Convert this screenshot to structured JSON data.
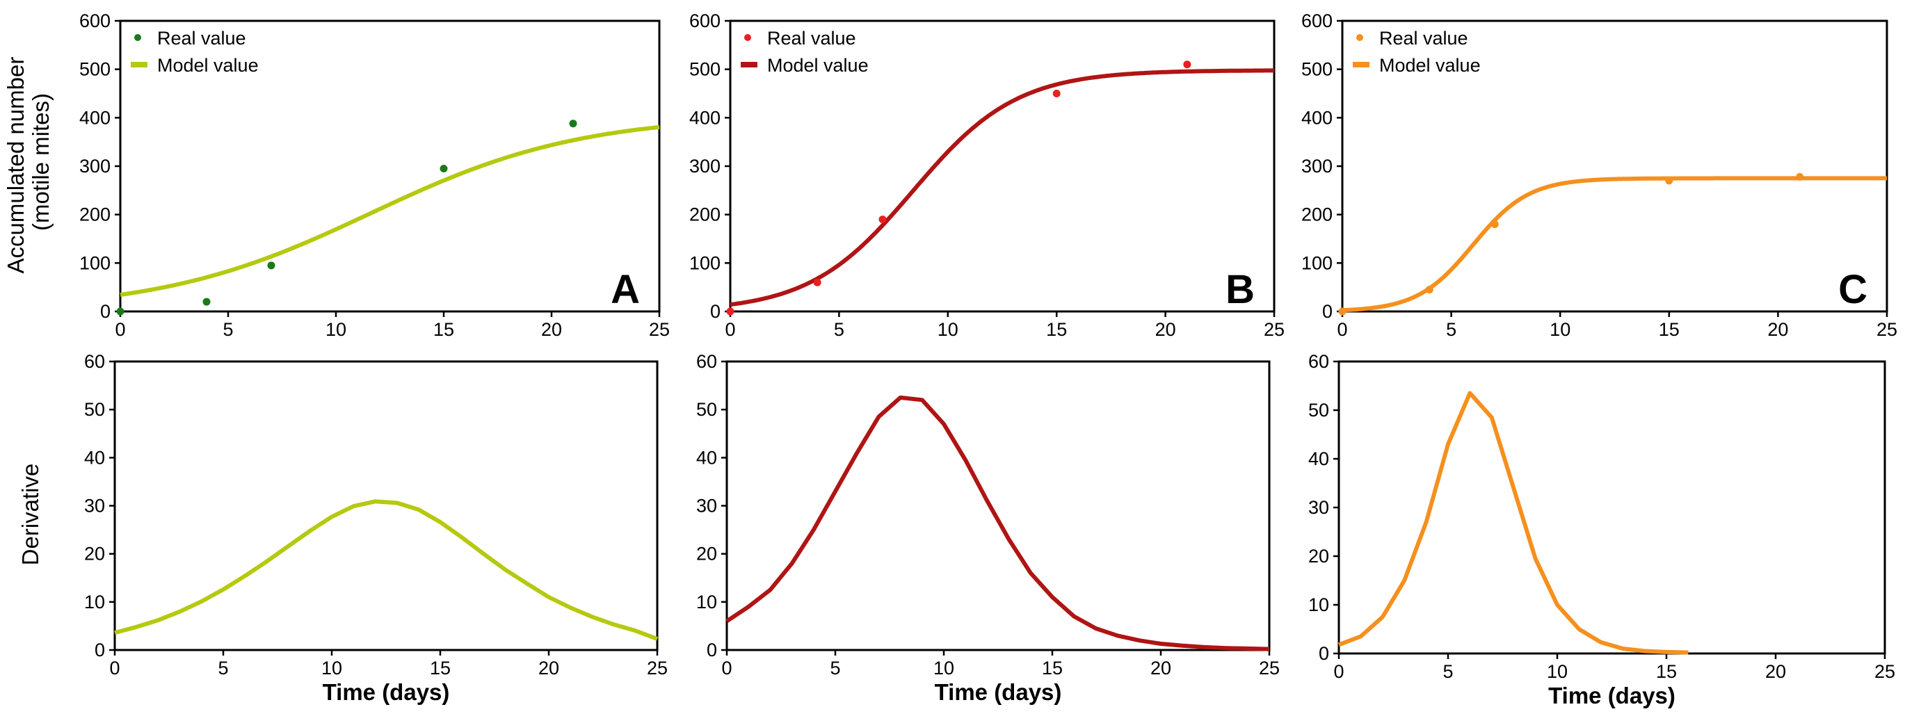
{
  "figure": {
    "y_label_top_line1": "Accumulated number",
    "y_label_top_line2": "(motile mites)",
    "y_label_bottom": "Derivative"
  },
  "chart_data": [
    {
      "id": "A-top",
      "type": "scatter+line",
      "panel_letter": "A",
      "color": "#b5c90f",
      "point_color": "#1a7a1a",
      "xlim": [
        0,
        25
      ],
      "ylim": [
        0,
        600
      ],
      "xticks": [
        0,
        5,
        10,
        15,
        20,
        25
      ],
      "yticks": [
        0,
        100,
        200,
        300,
        400,
        500,
        600
      ],
      "xlabel": "",
      "ylabel": "Accumulated number (motile mites)",
      "legend": {
        "real": "Real value",
        "model": "Model value",
        "position": "top-left"
      },
      "real_points": {
        "x": [
          0,
          4,
          7,
          15,
          21
        ],
        "y": [
          0,
          20,
          95,
          295,
          388
        ]
      },
      "model": {
        "type": "logistic",
        "K": 405,
        "r": 0.205,
        "t0": 11.6
      }
    },
    {
      "id": "B-top",
      "type": "scatter+line",
      "panel_letter": "B",
      "color": "#b01414",
      "point_color": "#e82020",
      "xlim": [
        0,
        25
      ],
      "ylim": [
        0,
        600
      ],
      "xticks": [
        0,
        5,
        10,
        15,
        20,
        25
      ],
      "yticks": [
        0,
        100,
        200,
        300,
        400,
        500,
        600
      ],
      "xlabel": "",
      "ylabel": "",
      "legend": {
        "real": "Real value",
        "model": "Model value",
        "position": "top-left"
      },
      "real_points": {
        "x": [
          0,
          4,
          7,
          15,
          21
        ],
        "y": [
          0,
          60,
          190,
          450,
          510
        ]
      },
      "model": {
        "type": "logistic",
        "K": 498,
        "r": 0.42,
        "t0": 8.4
      }
    },
    {
      "id": "C-top",
      "type": "scatter+line",
      "panel_letter": "C",
      "color": "#f5901e",
      "point_color": "#f5901e",
      "xlim": [
        0,
        25
      ],
      "ylim": [
        0,
        600
      ],
      "xticks": [
        0,
        5,
        10,
        15,
        20,
        25
      ],
      "yticks": [
        0,
        100,
        200,
        300,
        400,
        500,
        600
      ],
      "xlabel": "",
      "ylabel": "",
      "legend": {
        "real": "Real value",
        "model": "Model value",
        "position": "top-left"
      },
      "real_points": {
        "x": [
          0,
          4,
          7,
          15,
          21
        ],
        "y": [
          0,
          45,
          180,
          270,
          278
        ]
      },
      "model": {
        "type": "logistic",
        "K": 275,
        "r": 0.78,
        "t0": 6.0
      }
    },
    {
      "id": "A-bottom",
      "type": "line",
      "color": "#b5c90f",
      "xlim": [
        0,
        25
      ],
      "ylim": [
        0,
        60
      ],
      "xticks": [
        0,
        5,
        10,
        15,
        20,
        25
      ],
      "yticks": [
        0,
        10,
        20,
        30,
        40,
        50,
        60
      ],
      "xlabel": "Time (days)",
      "ylabel": "Derivative",
      "series": [
        {
          "name": "Derivative",
          "x": [
            0,
            1,
            2,
            3,
            4,
            5,
            6,
            7,
            8,
            9,
            10,
            11,
            12,
            13,
            14,
            15,
            16,
            17,
            18,
            19,
            20,
            21,
            22,
            23,
            24,
            25
          ],
          "values": [
            3.6,
            4.8,
            6.2,
            8.0,
            10.1,
            12.6,
            15.4,
            18.4,
            21.6,
            24.8,
            27.7,
            29.9,
            30.9,
            30.6,
            29.2,
            26.6,
            23.4,
            20.0,
            16.7,
            13.8,
            11.0,
            8.8,
            6.9,
            5.3,
            4.0,
            2.3
          ]
        }
      ]
    },
    {
      "id": "B-bottom",
      "type": "line",
      "color": "#b01414",
      "xlim": [
        0,
        25
      ],
      "ylim": [
        0,
        60
      ],
      "xticks": [
        0,
        5,
        10,
        15,
        20,
        25
      ],
      "yticks": [
        0,
        10,
        20,
        30,
        40,
        50,
        60
      ],
      "xlabel": "Time (days)",
      "ylabel": "",
      "series": [
        {
          "name": "Derivative",
          "x": [
            0,
            1,
            2,
            3,
            4,
            5,
            6,
            7,
            8,
            9,
            10,
            11,
            12,
            13,
            14,
            15,
            16,
            17,
            18,
            19,
            20,
            21,
            22,
            23,
            24,
            25
          ],
          "values": [
            6,
            9,
            12.5,
            18,
            25,
            33,
            41,
            48.5,
            52.5,
            52,
            47,
            39.5,
            31,
            23,
            16,
            11,
            7,
            4.5,
            3,
            2,
            1.3,
            0.9,
            0.6,
            0.4,
            0.3,
            0.2
          ]
        }
      ]
    },
    {
      "id": "C-bottom",
      "type": "line",
      "color": "#f5901e",
      "xlim": [
        0,
        25
      ],
      "ylim": [
        0,
        60
      ],
      "xticks": [
        0,
        5,
        10,
        15,
        20,
        25
      ],
      "yticks": [
        0,
        10,
        20,
        30,
        40,
        50,
        60
      ],
      "xlabel": "Time (days)",
      "ylabel": "",
      "series": [
        {
          "name": "Derivative",
          "x": [
            0,
            1,
            2,
            3,
            4,
            5,
            6,
            7,
            8,
            9,
            10,
            11,
            12,
            13,
            14,
            15,
            16
          ],
          "values": [
            1.8,
            3.5,
            7.5,
            15,
            27,
            43,
            53.5,
            48.5,
            34,
            19.5,
            10,
            5,
            2.3,
            1,
            0.5,
            0.3,
            0.2
          ]
        }
      ]
    }
  ]
}
